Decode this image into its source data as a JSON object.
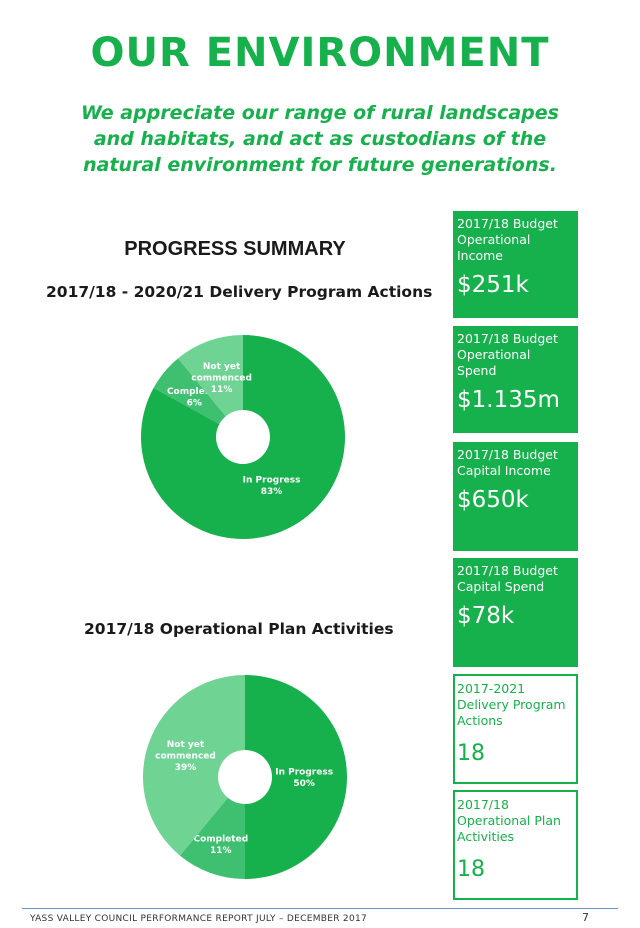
{
  "page": {
    "title": "OUR ENVIRONMENT",
    "subtitle": "We appreciate our range of rural landscapes and habitats, and act as custodians of the natural environment for future generations.",
    "summary_title": "PROGRESS SUMMARY",
    "footer": "YASS VALLEY COUNCIL PERFORMANCE REPORT JULY – DECEMBER 2017",
    "page_number": "7"
  },
  "colors": {
    "in_progress": "#16b04c",
    "completed": "#3ec070",
    "not_yet_commenced": "#6fd394",
    "text_green": "#16b04c"
  },
  "kpis": [
    {
      "label": "2017/18 Budget Operational Income",
      "value": "$251k",
      "style": "filled"
    },
    {
      "label": "2017/18 Budget Operational Spend",
      "value": "$1.135m",
      "style": "filled"
    },
    {
      "label": "2017/18 Budget Capital Income",
      "value": "$650k",
      "style": "filled"
    },
    {
      "label": "2017/18 Budget Capital Spend",
      "value": "$78k",
      "style": "filled"
    },
    {
      "label": "2017-2021 Delivery Program Actions",
      "value": "18",
      "style": "outline"
    },
    {
      "label": "2017/18 Operational Plan Activities",
      "value": "18",
      "style": "outline"
    }
  ],
  "chart_data": [
    {
      "type": "pie",
      "title": "2017/18 - 2020/21 Delivery Program Actions",
      "categories": [
        "In Progress",
        "Completed",
        "Not yet commenced"
      ],
      "values": [
        83,
        6,
        11
      ],
      "value_labels": [
        "83%",
        "6%",
        "11%"
      ]
    },
    {
      "type": "pie",
      "title": "2017/18 Operational Plan Activities",
      "categories": [
        "In Progress",
        "Completed",
        "Not yet commenced"
      ],
      "values": [
        50,
        11,
        39
      ],
      "value_labels": [
        "50%",
        "11%",
        "39%"
      ]
    }
  ]
}
